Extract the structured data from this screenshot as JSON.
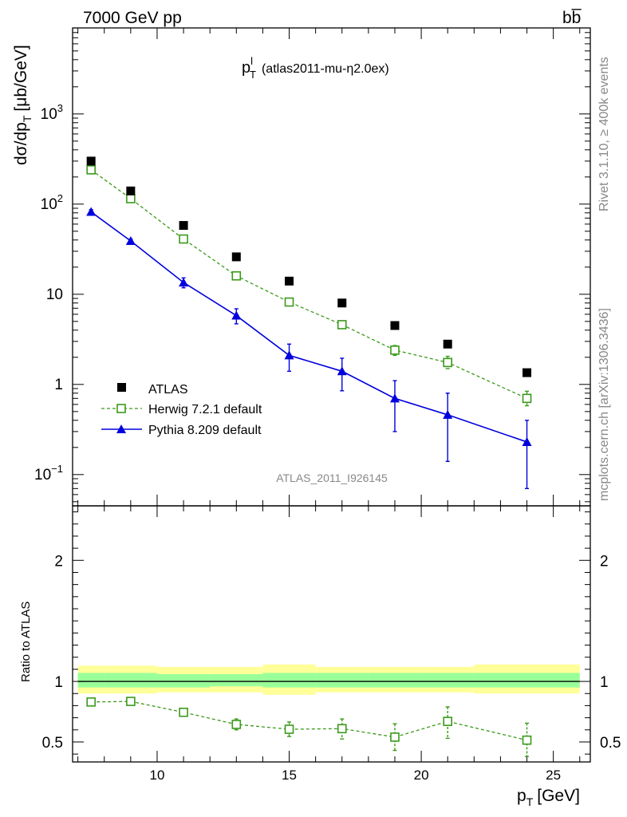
{
  "header": {
    "left": "7000 GeV pp",
    "right": "bb̅"
  },
  "side_texts": {
    "rivet": "Rivet 3.1.10, ≥ 400k events",
    "mcplots": "mcplots.cern.ch [arXiv:1306.3436]"
  },
  "chart_data": [
    {
      "type": "scatter",
      "panel": "main",
      "title": "p",
      "title_sup": "l",
      "title_sub": "T",
      "subtitle": "(atlas2011-mu-η2.0ex)",
      "ylabel": "dσ/dp",
      "ylabel_sub": "T",
      "ylabel_unit": "[μb/GeV]",
      "yscale": "log",
      "ylim": [
        0.045,
        9000
      ],
      "xlim": [
        6.8,
        26.4
      ],
      "ytick_labels": [
        {
          "value": 0.1,
          "base": "10",
          "exp": "−1"
        },
        {
          "value": 1,
          "base": "1",
          "exp": ""
        },
        {
          "value": 10,
          "base": "10",
          "exp": ""
        },
        {
          "value": 100,
          "base": "10",
          "exp": "2"
        },
        {
          "value": 1000,
          "base": "10",
          "exp": "3"
        }
      ],
      "watermark": "ATLAS_2011_I926145",
      "legend_position": "bottom-left",
      "series": [
        {
          "name": "ATLAS",
          "color": "#000000",
          "marker": "filled-square",
          "x": [
            7.5,
            9,
            11,
            13,
            15,
            17,
            19,
            21,
            24
          ],
          "y": [
            300,
            140,
            58,
            26,
            14,
            8,
            4.5,
            2.8,
            1.35
          ]
        },
        {
          "name": "Herwig 7.2.1 default",
          "color": "#3a9a1a",
          "marker": "open-square",
          "line": "dashed",
          "x": [
            7.5,
            9,
            11,
            13,
            15,
            17,
            19,
            21,
            24
          ],
          "y": [
            240,
            115,
            41,
            16,
            8.2,
            4.6,
            2.4,
            1.75,
            0.7
          ],
          "err_low": [
            225,
            108,
            38,
            14.8,
            7.6,
            4.2,
            2.1,
            1.5,
            0.58
          ],
          "err_high": [
            255,
            122,
            44,
            17.2,
            8.8,
            5.0,
            2.7,
            2.05,
            0.84
          ]
        },
        {
          "name": "Pythia 8.209 default",
          "color": "#0000dd",
          "marker": "filled-triangle",
          "line": "solid",
          "x": [
            7.5,
            9,
            11,
            13,
            15,
            17,
            19,
            21,
            24
          ],
          "y": [
            82,
            39,
            13.5,
            5.8,
            2.1,
            1.4,
            0.7,
            0.46,
            0.23
          ],
          "err_low": [
            77,
            37,
            11.8,
            4.7,
            1.4,
            0.85,
            0.3,
            0.14,
            0.07
          ],
          "err_high": [
            87,
            41,
            15.2,
            6.9,
            2.8,
            1.95,
            1.1,
            0.8,
            0.4
          ]
        }
      ]
    },
    {
      "type": "scatter",
      "panel": "ratio",
      "ylabel": "Ratio to ATLAS",
      "xlabel": "p",
      "xlabel_sub": "T",
      "xlabel_unit": "[GeV]",
      "xlim": [
        6.8,
        26.4
      ],
      "ylim": [
        0.335,
        2.45
      ],
      "xtick_labels": [
        "10",
        "15",
        "20",
        "25"
      ],
      "xtick_values": [
        10,
        15,
        20,
        25
      ],
      "ytick_labels": [
        "0.5",
        "1",
        "2"
      ],
      "ytick_values": [
        0.5,
        1,
        2
      ],
      "bands": {
        "x_edges": [
          7,
          8,
          10,
          12,
          14,
          16,
          18,
          20,
          22,
          26
        ],
        "yellow_low": [
          0.9,
          0.9,
          0.91,
          0.91,
          0.89,
          0.91,
          0.91,
          0.91,
          0.9
        ],
        "yellow_high": [
          1.13,
          1.13,
          1.12,
          1.12,
          1.14,
          1.12,
          1.12,
          1.12,
          1.14
        ],
        "green_low": [
          0.95,
          0.95,
          0.95,
          0.96,
          0.95,
          0.95,
          0.95,
          0.95,
          0.95
        ],
        "green_high": [
          1.07,
          1.07,
          1.06,
          1.06,
          1.07,
          1.07,
          1.07,
          1.07,
          1.07
        ],
        "yellow_color": "#ffff99",
        "green_color": "#99ff99"
      },
      "series": [
        {
          "name": "Herwig 7.2.1 default",
          "color": "#3a9a1a",
          "marker": "open-square",
          "line": "dashed",
          "x": [
            7.5,
            9,
            11,
            13,
            15,
            17,
            19,
            21,
            24
          ],
          "y": [
            0.83,
            0.835,
            0.745,
            0.645,
            0.605,
            0.61,
            0.54,
            0.67,
            0.515
          ],
          "err_low": [
            0.82,
            0.825,
            0.72,
            0.6,
            0.545,
            0.525,
            0.43,
            0.53,
            0.38
          ],
          "err_high": [
            0.84,
            0.845,
            0.77,
            0.69,
            0.665,
            0.69,
            0.65,
            0.79,
            0.655
          ]
        }
      ]
    }
  ]
}
